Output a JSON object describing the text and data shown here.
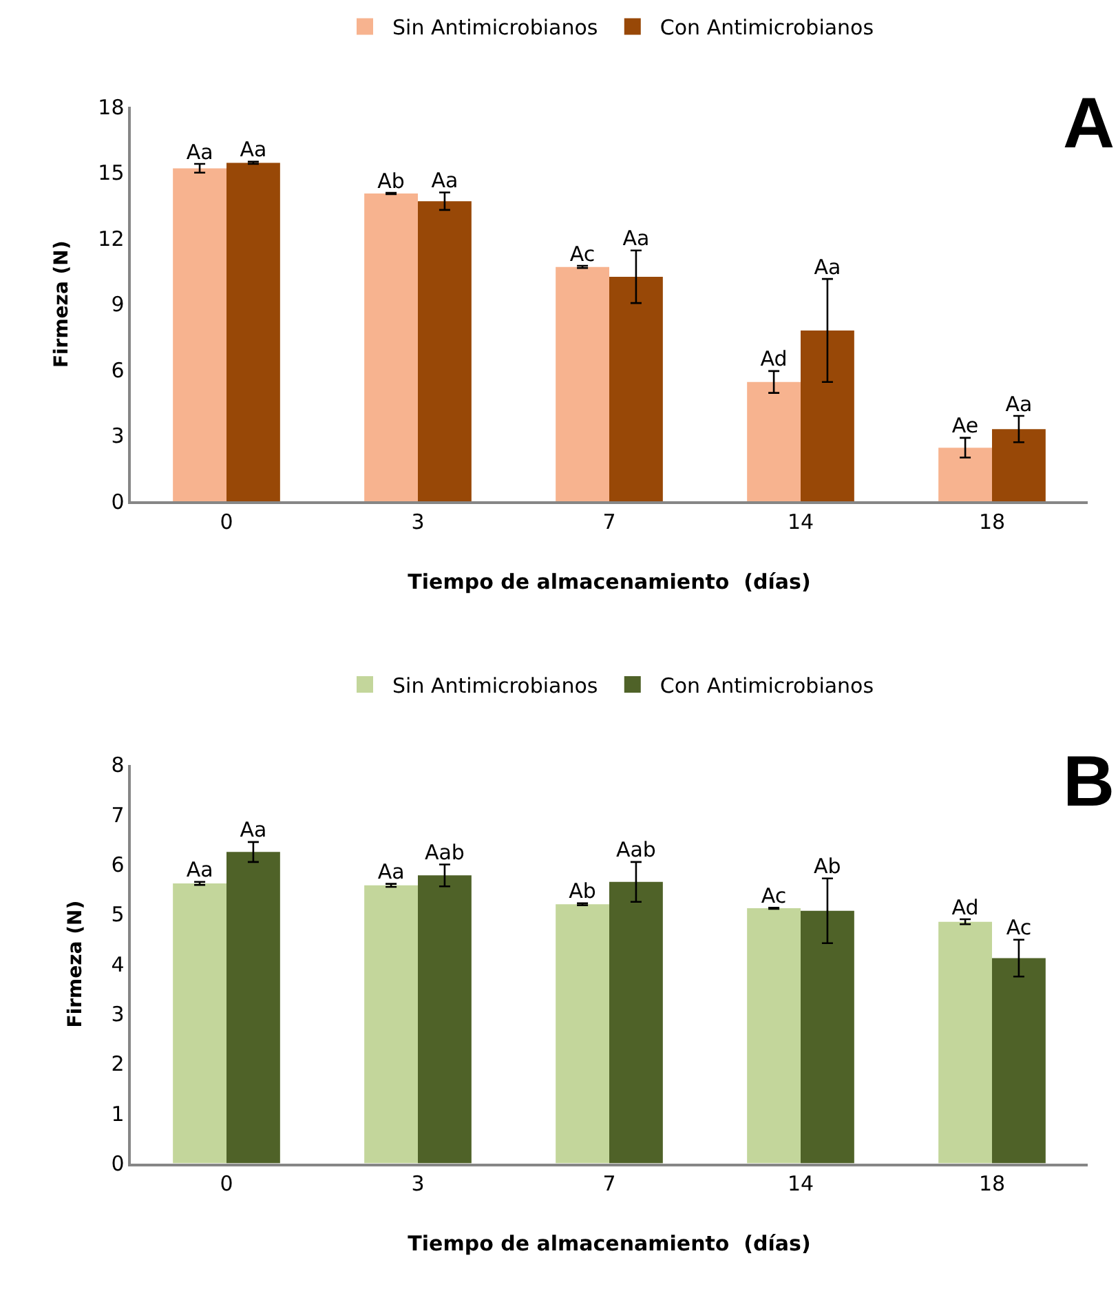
{
  "chart_data": [
    {
      "type": "bar",
      "xlabel": "Tiempo de almacenamiento  (días)",
      "ylabel": "Firmeza (N)",
      "categories": [
        "0",
        "3",
        "7",
        "14",
        "18"
      ],
      "ylim": [
        0,
        18
      ],
      "yticks": [
        0,
        3,
        6,
        9,
        12,
        15,
        18
      ],
      "grid": false,
      "legend": "top",
      "annotations": [
        "A"
      ],
      "series": [
        {
          "name": "Sin Antimicrobianos",
          "color": "#f7b38f",
          "values": [
            15.2,
            14.05,
            10.7,
            5.45,
            2.45
          ],
          "errors": [
            0.2,
            0.03,
            0.05,
            0.5,
            0.45
          ],
          "value_labels": [
            "Aa",
            "Ab",
            "Ac",
            "Ad",
            "Ae"
          ]
        },
        {
          "name": "Con Antimicrobianos",
          "color": "#984807",
          "values": [
            15.45,
            13.7,
            10.25,
            7.8,
            3.3
          ],
          "errors": [
            0.05,
            0.4,
            1.2,
            2.35,
            0.6
          ],
          "value_labels": [
            "Aa",
            "Aa",
            "Aa",
            "Aa",
            "Aa"
          ]
        }
      ]
    },
    {
      "type": "bar",
      "xlabel": "Tiempo de almacenamiento  (días)",
      "ylabel": "Firmeza (N)",
      "categories": [
        "0",
        "3",
        "7",
        "14",
        "18"
      ],
      "ylim": [
        0,
        8
      ],
      "yticks": [
        0,
        1,
        2,
        3,
        4,
        5,
        6,
        7,
        8
      ],
      "grid": false,
      "legend": "top",
      "annotations": [
        "B"
      ],
      "series": [
        {
          "name": "Sin Antimicrobianos",
          "color": "#c3d69b",
          "values": [
            5.62,
            5.58,
            5.2,
            5.12,
            4.85
          ],
          "errors": [
            0.03,
            0.03,
            0.02,
            0.01,
            0.05
          ],
          "value_labels": [
            "Aa",
            "Aa",
            "Ab",
            "Ac",
            "Ad"
          ]
        },
        {
          "name": "Con Antimicrobianos",
          "color": "#4f6228",
          "values": [
            6.25,
            5.78,
            5.65,
            5.07,
            4.12
          ],
          "errors": [
            0.2,
            0.22,
            0.4,
            0.65,
            0.37
          ],
          "value_labels": [
            "Aa",
            "Aab",
            "Aab",
            "Ab",
            "Ac"
          ]
        }
      ]
    }
  ]
}
